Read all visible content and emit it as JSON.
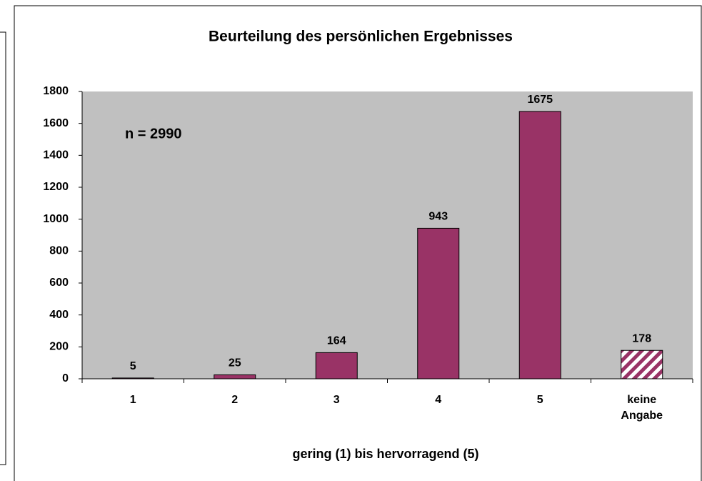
{
  "chart_data": {
    "type": "bar",
    "title": "Beurteilung des persönlichen Ergebnisses",
    "x_label": "gering (1) bis hervorragend (5)",
    "annotation": "n = 2990",
    "categories": [
      "1",
      "2",
      "3",
      "4",
      "5",
      "keine Angabe"
    ],
    "values": [
      5,
      25,
      164,
      943,
      1675,
      178
    ],
    "hatched": [
      false,
      false,
      false,
      false,
      false,
      true
    ],
    "color": "#993366",
    "plot_background": "#c0c0c0",
    "ylim": [
      0,
      1800
    ],
    "yticks": [
      0,
      200,
      400,
      600,
      800,
      1000,
      1200,
      1400,
      1600,
      1800
    ],
    "grid": false
  }
}
